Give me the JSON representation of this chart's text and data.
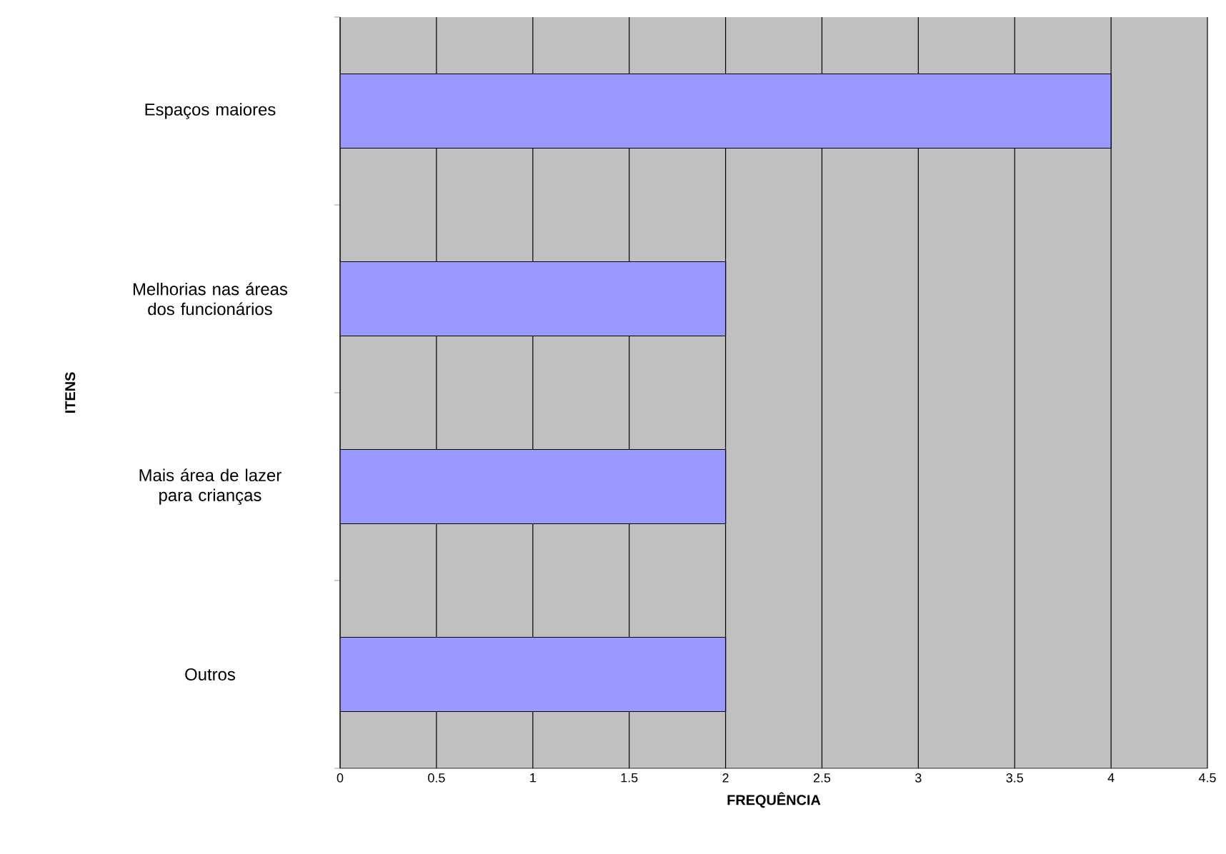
{
  "chart_data": {
    "type": "bar",
    "orientation": "horizontal",
    "categories": [
      "Espaços maiores",
      "Melhorias nas áreas dos funcionários",
      "Mais área de lazer para crianças",
      "Outros"
    ],
    "values": [
      4,
      2,
      2,
      2
    ],
    "color": "#9999ff",
    "xlim": [
      0,
      4.5
    ],
    "xticks": [
      0,
      0.5,
      1,
      1.5,
      2,
      2.5,
      3,
      3.5,
      4,
      4.5
    ],
    "xlabel": "FREQUÊNCIA",
    "ylabel": "ITENS",
    "grid": "x"
  }
}
